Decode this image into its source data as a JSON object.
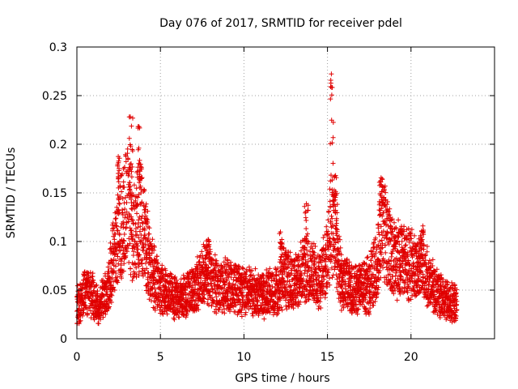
{
  "chart_data": {
    "type": "scatter",
    "title": "Day 076 of 2017, SRMTID for receiver pdel",
    "xlabel": "GPS time / hours",
    "ylabel": "SRMTID / TECUs",
    "xlim": [
      0,
      25
    ],
    "ylim": [
      0,
      0.3
    ],
    "xticks": [
      0,
      5,
      10,
      15,
      20
    ],
    "xtick_labels": [
      "0",
      "5",
      "10",
      "15",
      "20"
    ],
    "yticks": [
      0,
      0.05,
      0.1,
      0.15,
      0.2,
      0.25,
      0.3
    ],
    "ytick_labels": [
      "0",
      "0.05",
      "0.1",
      "0.15",
      "0.2",
      "0.25",
      "0.3"
    ],
    "grid": true,
    "marker": "+",
    "point_color": "#e00000",
    "series": [
      {
        "name": "SRMTID",
        "x_range_observed": [
          0.0,
          22.75
        ],
        "sample_interval_hours": 0.0083,
        "trend": [
          {
            "x": 0.0,
            "y": 0.035
          },
          {
            "x": 0.5,
            "y": 0.045
          },
          {
            "x": 1.0,
            "y": 0.045
          },
          {
            "x": 1.3,
            "y": 0.03
          },
          {
            "x": 1.8,
            "y": 0.05
          },
          {
            "x": 2.2,
            "y": 0.085
          },
          {
            "x": 2.7,
            "y": 0.12
          },
          {
            "x": 3.0,
            "y": 0.14
          },
          {
            "x": 3.4,
            "y": 0.105
          },
          {
            "x": 3.8,
            "y": 0.13
          },
          {
            "x": 4.2,
            "y": 0.09
          },
          {
            "x": 4.6,
            "y": 0.065
          },
          {
            "x": 5.0,
            "y": 0.05
          },
          {
            "x": 6.0,
            "y": 0.04
          },
          {
            "x": 7.0,
            "y": 0.05
          },
          {
            "x": 7.8,
            "y": 0.07
          },
          {
            "x": 8.5,
            "y": 0.05
          },
          {
            "x": 9.0,
            "y": 0.055
          },
          {
            "x": 10.0,
            "y": 0.05
          },
          {
            "x": 11.0,
            "y": 0.045
          },
          {
            "x": 12.0,
            "y": 0.05
          },
          {
            "x": 12.5,
            "y": 0.065
          },
          {
            "x": 13.0,
            "y": 0.055
          },
          {
            "x": 13.7,
            "y": 0.075
          },
          {
            "x": 14.5,
            "y": 0.06
          },
          {
            "x": 15.0,
            "y": 0.08
          },
          {
            "x": 15.2,
            "y": 0.12
          },
          {
            "x": 15.5,
            "y": 0.1
          },
          {
            "x": 15.8,
            "y": 0.06
          },
          {
            "x": 16.5,
            "y": 0.05
          },
          {
            "x": 17.5,
            "y": 0.055
          },
          {
            "x": 18.0,
            "y": 0.08
          },
          {
            "x": 18.3,
            "y": 0.12
          },
          {
            "x": 18.8,
            "y": 0.085
          },
          {
            "x": 19.5,
            "y": 0.08
          },
          {
            "x": 20.0,
            "y": 0.075
          },
          {
            "x": 20.7,
            "y": 0.07
          },
          {
            "x": 21.5,
            "y": 0.05
          },
          {
            "x": 22.0,
            "y": 0.04
          },
          {
            "x": 22.75,
            "y": 0.035
          }
        ],
        "bursts": [
          {
            "x_from": 3.1,
            "x_to": 3.35,
            "y_from": 0.16,
            "y_to": 0.23
          },
          {
            "x_from": 3.65,
            "x_to": 3.9,
            "y_from": 0.16,
            "y_to": 0.22
          },
          {
            "x_from": 2.4,
            "x_to": 2.55,
            "y_from": 0.16,
            "y_to": 0.19
          },
          {
            "x_from": 15.15,
            "x_to": 15.35,
            "y_from": 0.18,
            "y_to": 0.275
          },
          {
            "x_from": 15.35,
            "x_to": 15.6,
            "y_from": 0.13,
            "y_to": 0.17
          },
          {
            "x_from": 18.1,
            "x_to": 18.35,
            "y_from": 0.14,
            "y_to": 0.17
          },
          {
            "x_from": 13.6,
            "x_to": 13.85,
            "y_from": 0.1,
            "y_to": 0.14
          },
          {
            "x_from": 7.7,
            "x_to": 7.95,
            "y_from": 0.085,
            "y_to": 0.105
          },
          {
            "x_from": 12.1,
            "x_to": 12.35,
            "y_from": 0.09,
            "y_to": 0.11
          },
          {
            "x_from": 20.55,
            "x_to": 20.75,
            "y_from": 0.09,
            "y_to": 0.12
          }
        ]
      }
    ]
  }
}
